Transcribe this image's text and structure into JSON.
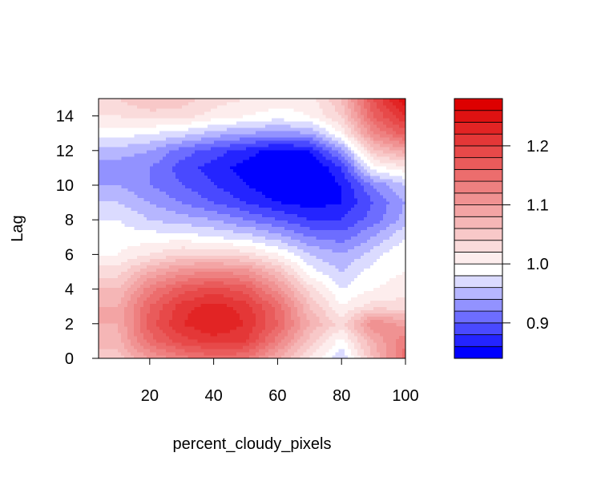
{
  "chart_data": {
    "type": "contour",
    "xlabel": "percent_cloudy_pixels",
    "ylabel": "Lag",
    "xlim": [
      4,
      100
    ],
    "ylim": [
      0,
      15
    ],
    "x_ticks": [
      20,
      40,
      60,
      80,
      100
    ],
    "y_ticks": [
      0,
      2,
      4,
      6,
      8,
      10,
      12,
      14
    ],
    "x_tick_labels": [
      "20",
      "40",
      "60",
      "80",
      "100"
    ],
    "y_tick_labels": [
      "0",
      "2",
      "4",
      "6",
      "8",
      "10",
      "12",
      "14"
    ],
    "x_grid": [
      10,
      20,
      30,
      40,
      50,
      60,
      70,
      80,
      90,
      100
    ],
    "y_grid": [
      0,
      1,
      2,
      3,
      4,
      5,
      6,
      7,
      8,
      9,
      10,
      11,
      12,
      13,
      14,
      15
    ],
    "z_grid": [
      [
        1.05,
        1.1,
        1.13,
        1.15,
        1.14,
        1.08,
        1.02,
        0.96,
        1.06,
        1.15
      ],
      [
        1.07,
        1.15,
        1.19,
        1.21,
        1.2,
        1.13,
        1.05,
        0.99,
        1.08,
        1.14
      ],
      [
        1.08,
        1.17,
        1.22,
        1.24,
        1.22,
        1.16,
        1.08,
        1.03,
        1.12,
        1.09
      ],
      [
        1.08,
        1.16,
        1.21,
        1.23,
        1.21,
        1.15,
        1.06,
        1.0,
        1.03,
        1.03
      ],
      [
        1.06,
        1.13,
        1.17,
        1.19,
        1.17,
        1.11,
        1.03,
        0.98,
        1.0,
        1.01
      ],
      [
        1.03,
        1.08,
        1.11,
        1.12,
        1.11,
        1.06,
        0.99,
        0.96,
        0.99,
        1.0
      ],
      [
        1.0,
        1.02,
        1.04,
        1.04,
        1.03,
        1.0,
        0.96,
        0.94,
        0.97,
        1.0
      ],
      [
        0.99,
        0.99,
        0.99,
        0.98,
        0.97,
        0.95,
        0.92,
        0.91,
        0.94,
        0.98
      ],
      [
        0.98,
        0.96,
        0.95,
        0.94,
        0.92,
        0.9,
        0.88,
        0.88,
        0.91,
        0.95
      ],
      [
        0.96,
        0.94,
        0.92,
        0.9,
        0.88,
        0.86,
        0.85,
        0.86,
        0.9,
        0.94
      ],
      [
        0.94,
        0.92,
        0.9,
        0.88,
        0.86,
        0.84,
        0.83,
        0.86,
        0.92,
        0.96
      ],
      [
        0.93,
        0.92,
        0.89,
        0.87,
        0.85,
        0.83,
        0.83,
        0.88,
        0.99,
        1.01
      ],
      [
        0.95,
        0.94,
        0.91,
        0.89,
        0.87,
        0.85,
        0.86,
        0.93,
        1.05,
        1.09
      ],
      [
        0.99,
        0.98,
        0.97,
        0.95,
        0.94,
        0.93,
        0.94,
        1.0,
        1.12,
        1.17
      ],
      [
        1.02,
        1.03,
        1.03,
        1.01,
        1.0,
        0.99,
        1.0,
        1.04,
        1.16,
        1.22
      ],
      [
        1.04,
        1.06,
        1.05,
        1.03,
        1.02,
        1.01,
        1.01,
        1.06,
        1.18,
        1.26
      ]
    ],
    "levels": [
      0.84,
      0.86,
      0.88,
      0.9,
      0.92,
      0.94,
      0.96,
      0.98,
      1.0,
      1.02,
      1.04,
      1.06,
      1.08,
      1.1,
      1.12,
      1.14,
      1.16,
      1.18,
      1.2,
      1.22,
      1.24,
      1.26,
      1.28
    ],
    "colorbar_ticks": [
      0.9,
      1.0,
      1.1,
      1.2
    ],
    "colorbar_tick_labels": [
      "0.9",
      "1.0",
      "1.1",
      "1.2"
    ],
    "palette": {
      "low": "#0000ff",
      "mid": "#ffffff",
      "high": "#dd0000"
    },
    "grid": false,
    "legend_position": "right"
  }
}
